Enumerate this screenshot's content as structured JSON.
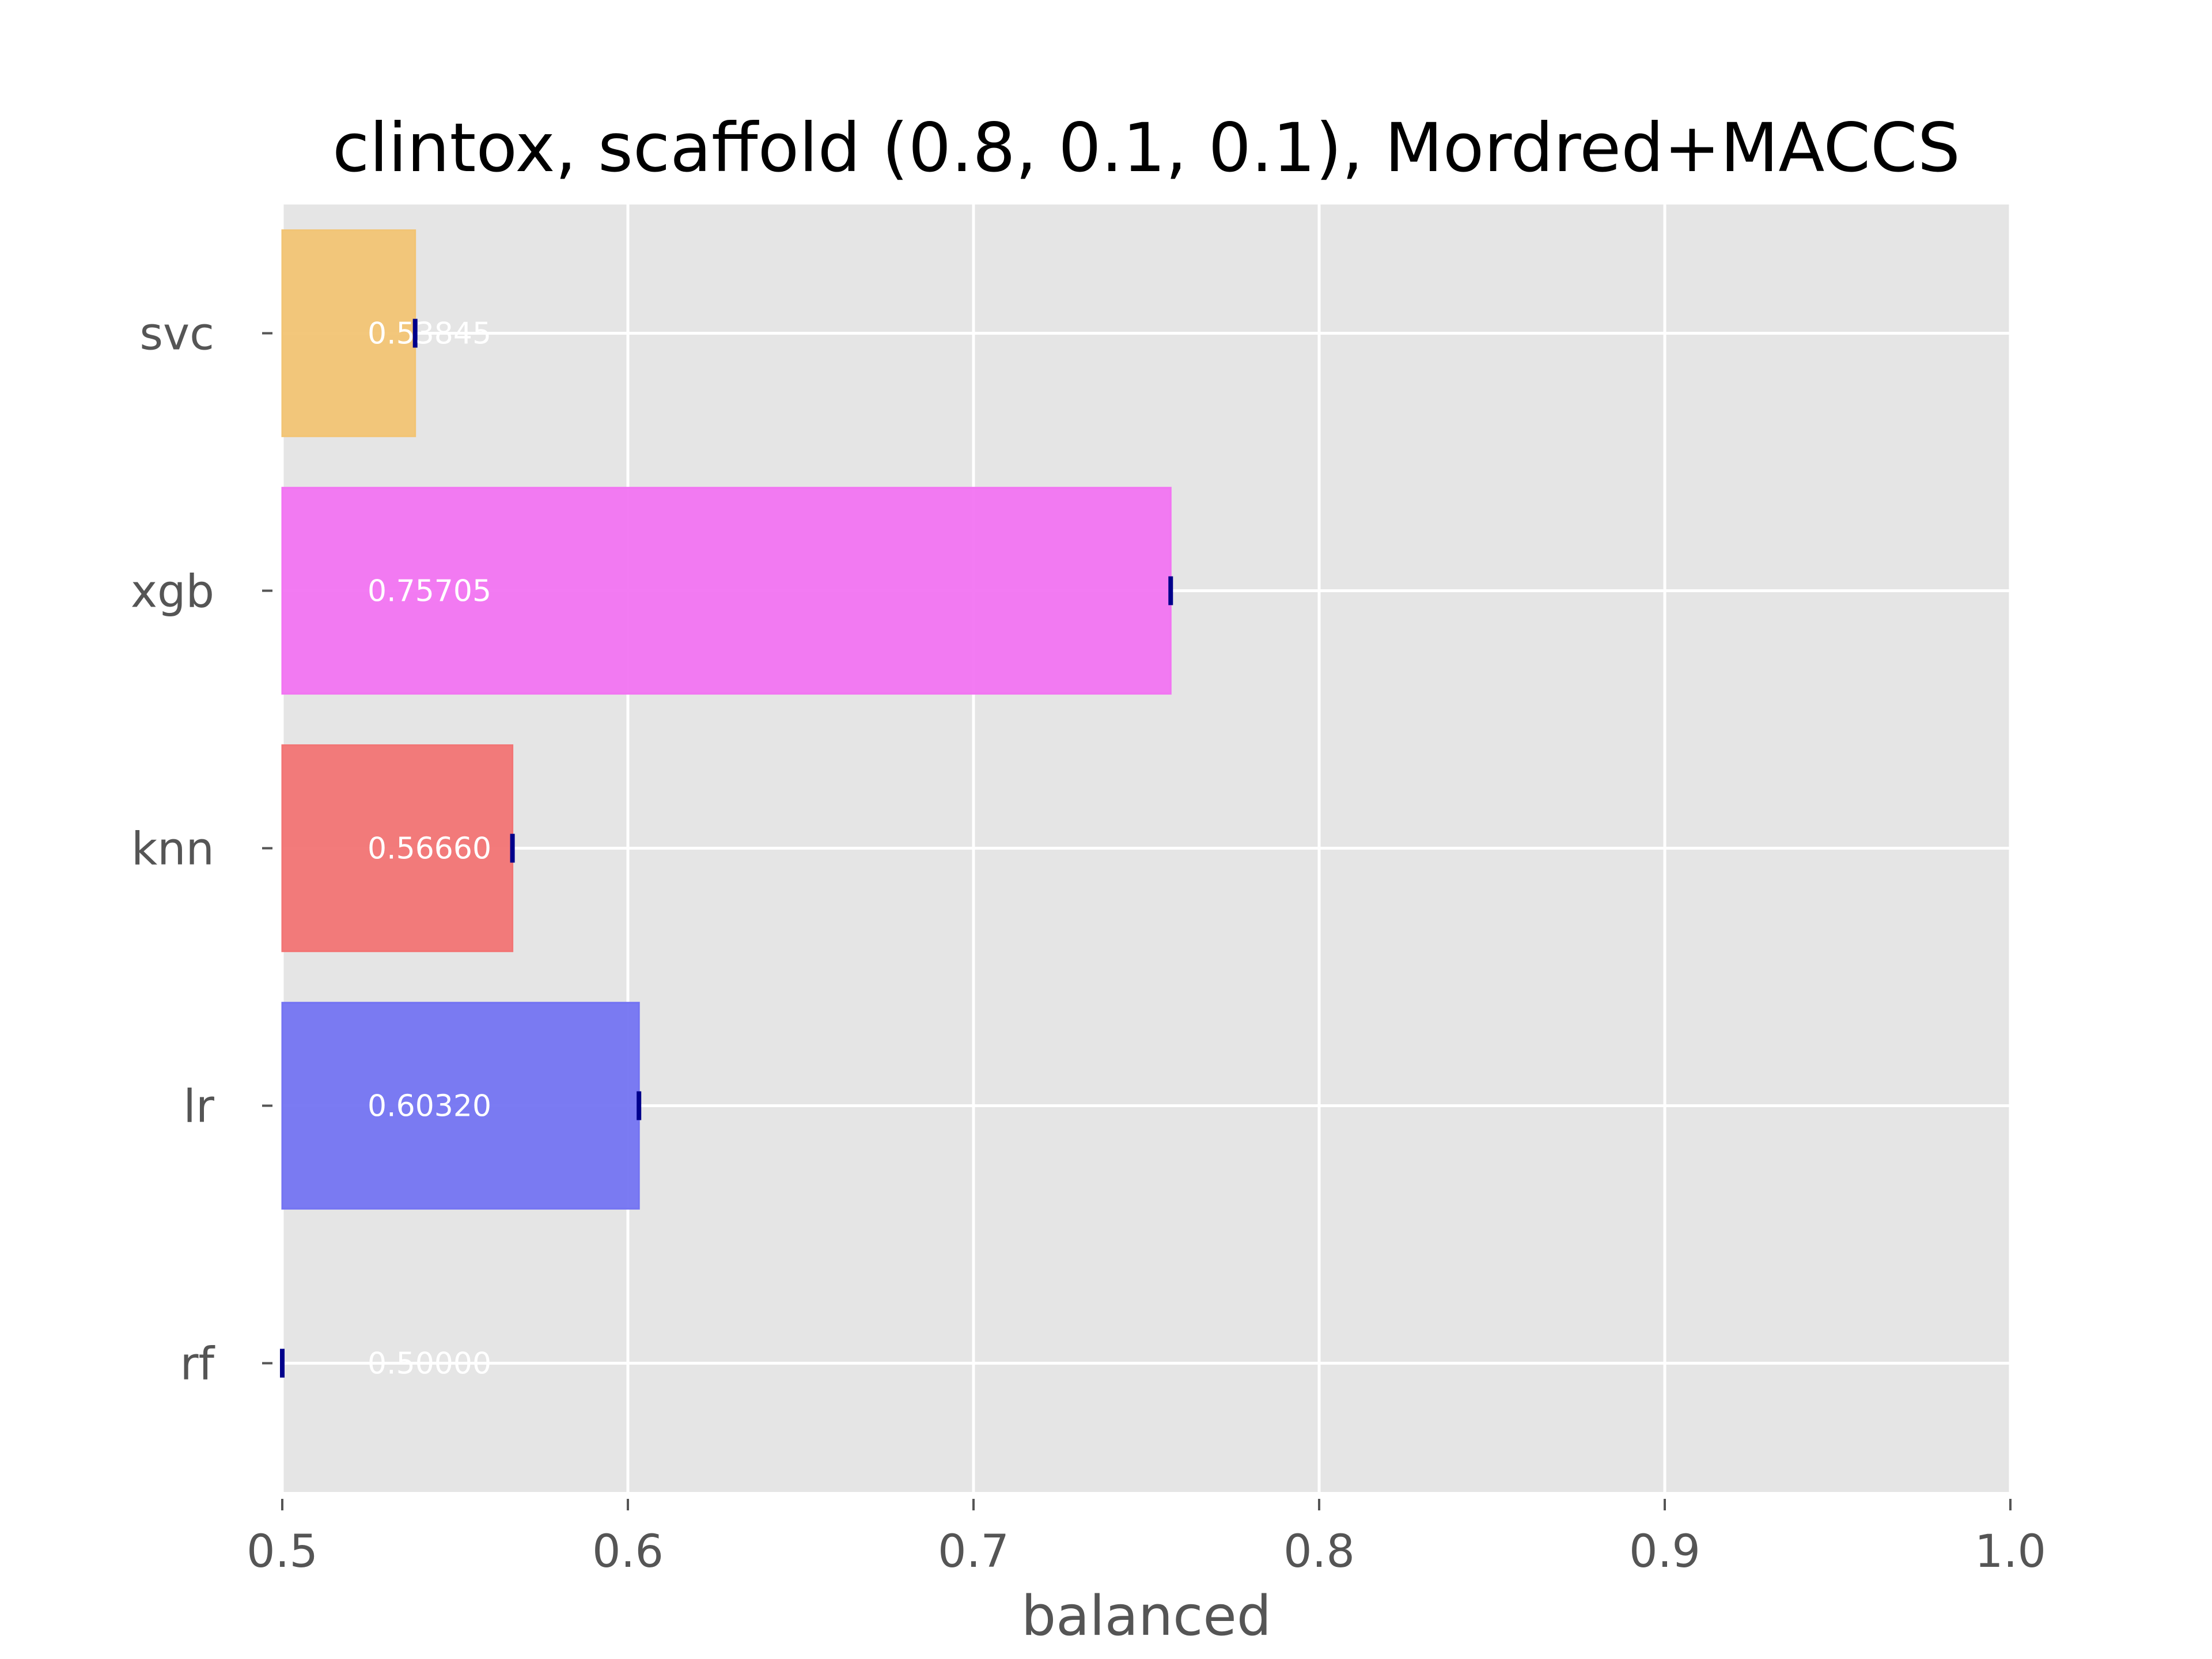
{
  "chart_data": {
    "type": "bar",
    "orientation": "horizontal",
    "title": "clintox, scaffold (0.8, 0.1, 0.1), Mordred+MACCS",
    "xlabel": "balanced",
    "ylabel": "",
    "xlim": [
      0.5,
      1.0
    ],
    "x_ticks": [
      "0.5",
      "0.6",
      "0.7",
      "0.8",
      "0.9",
      "1.0"
    ],
    "grid": true,
    "categories": [
      "rf",
      "lr",
      "knn",
      "xgb",
      "svc"
    ],
    "values": [
      0.5,
      0.6032,
      0.5666,
      0.75705,
      0.53845
    ],
    "value_labels": [
      "0.50000",
      "0.60320",
      "0.56660",
      "0.75705",
      "0.53845"
    ],
    "colors": [
      "#e6e6e6",
      "#7474f2",
      "#f27474",
      "#f274f2",
      "#f2c474"
    ],
    "error_bar_color": "#00008b",
    "background": "#e5e5e5",
    "grid_color": "#ffffff"
  }
}
